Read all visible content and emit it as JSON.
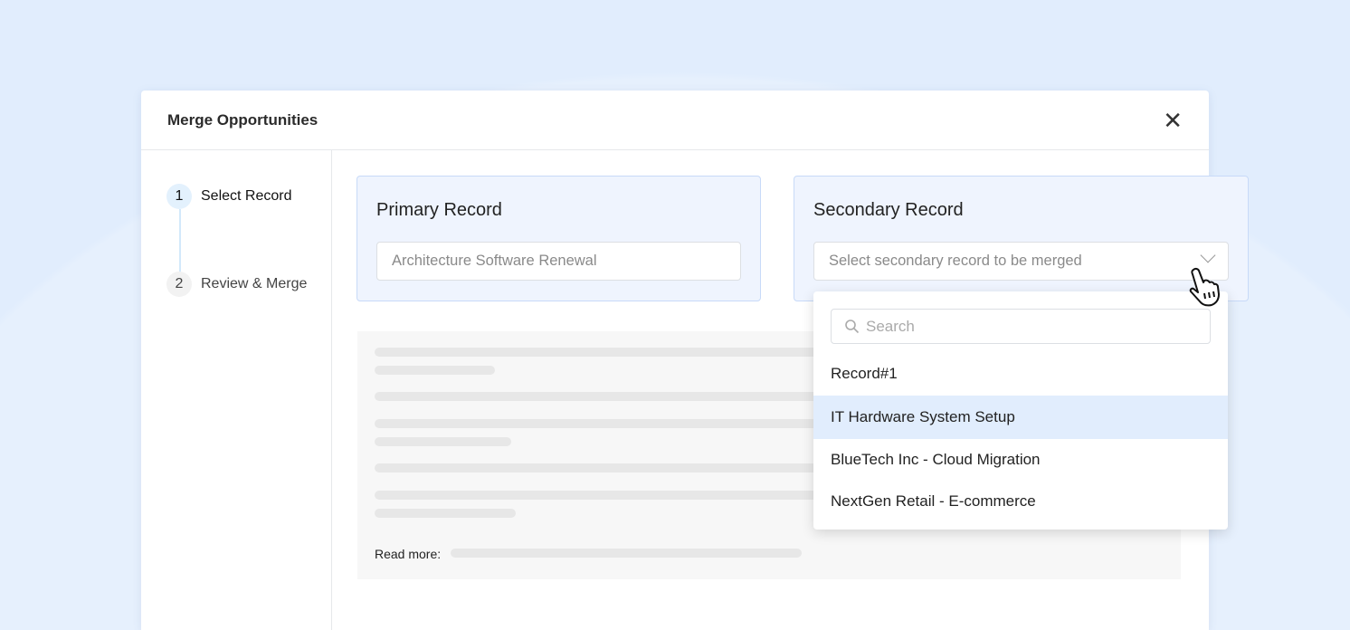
{
  "modal": {
    "title": "Merge Opportunities",
    "close_icon": "close-icon"
  },
  "steps": [
    {
      "number": "1",
      "label": "Select Record",
      "active": true
    },
    {
      "number": "2",
      "label": "Review & Merge",
      "active": false
    }
  ],
  "primary": {
    "heading": "Primary Record",
    "value": "Architecture Software Renewal"
  },
  "secondary": {
    "heading": "Secondary Record",
    "placeholder": "Select secondary record to be merged"
  },
  "dropdown": {
    "search_placeholder": "Search",
    "options": [
      "Record#1",
      "IT Hardware System Setup",
      "BlueTech Inc - Cloud Migration",
      "NextGen Retail - E-commerce"
    ],
    "highlighted": "IT Hardware System Setup"
  },
  "preview": {
    "read_more_label": "Read more:"
  },
  "colors": {
    "background": "#e1edfd",
    "card": "#eff4fe",
    "highlight": "#e1edfd"
  }
}
